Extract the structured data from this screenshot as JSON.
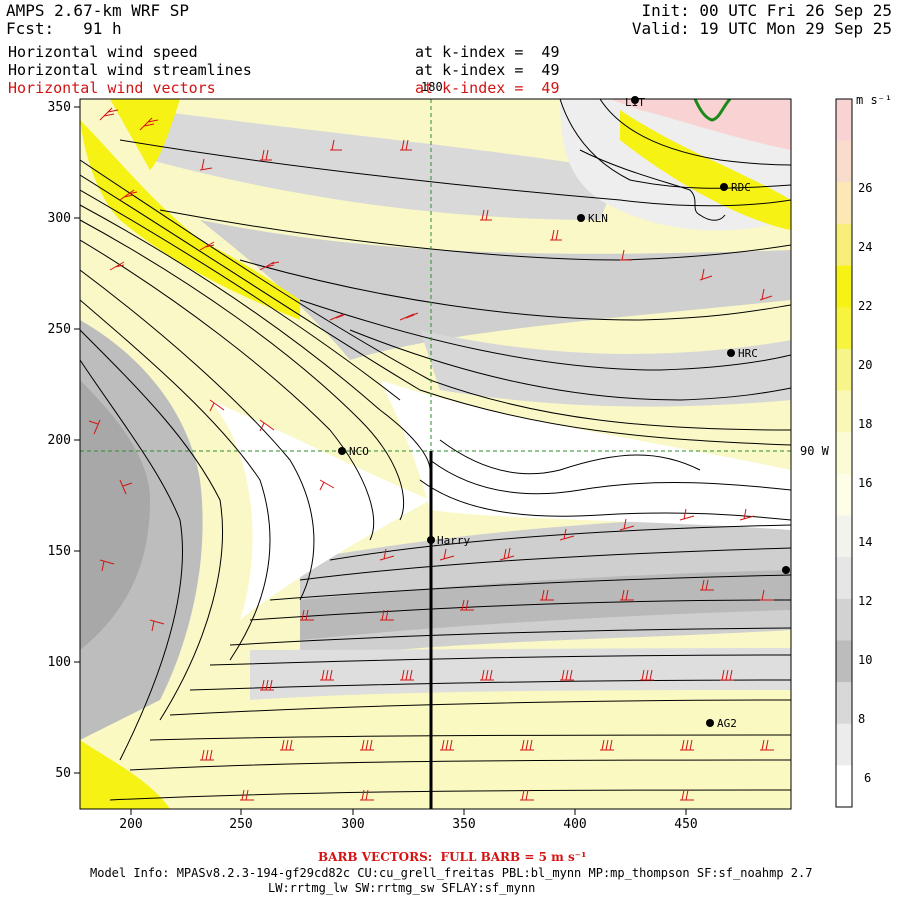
{
  "header": {
    "model_name": "AMPS 2.67-km WRF SP",
    "forecast": "Fcst:   91 h",
    "init": "Init: 00 UTC Fri 26 Sep 25",
    "valid": "Valid: 19 UTC Mon 29 Sep 25",
    "fields": [
      {
        "name": "Horizontal wind speed",
        "level": "at k-index =  49",
        "color": "#000000"
      },
      {
        "name": "Horizontal wind streamlines",
        "level": "at k-index =  49",
        "color": "#000000"
      },
      {
        "name": "Horizontal wind vectors",
        "level": "at k-index =  49",
        "color": "#d41414"
      }
    ]
  },
  "map": {
    "x_ticks": [
      "200",
      "250",
      "300",
      "350",
      "400",
      "450"
    ],
    "y_ticks": [
      "350",
      "300",
      "250",
      "200",
      "150",
      "100",
      "50"
    ],
    "meridian_label": "180",
    "parallel_label": "90 W",
    "stations": [
      {
        "name": "NCO"
      },
      {
        "name": "Harry"
      },
      {
        "name": "KLN"
      },
      {
        "name": "RDC"
      },
      {
        "name": "HRC"
      },
      {
        "name": "AG2"
      },
      {
        "name": "LIT"
      }
    ]
  },
  "colorbar": {
    "unit": "m s⁻¹",
    "labels": [
      "26",
      "24",
      "22",
      "20",
      "18",
      "16",
      "14",
      "12",
      "10",
      "8",
      "6"
    ],
    "colors": [
      "#f9d3d3",
      "#f9dccb",
      "#fbe8b4",
      "#f8ee7a",
      "#f6f214",
      "#f6f43c",
      "#f7f58a",
      "#f9f8b6",
      "#fbfbd6",
      "#fdfde8",
      "#f3f3ee",
      "#e6e6e6",
      "#d2d2d2",
      "#bcbcbc",
      "#d8d8d8",
      "#ececec",
      "#ffffff"
    ]
  },
  "footer": {
    "barb_note": "BARB VECTORS:  FULL BARB = 5 m s⁻¹",
    "model_info_1": "Model Info: MPASv8.2.3-194-gf29cd82c CU:cu_grell_freitas PBL:bl_mynn MP:mp_thompson SF:sf_noahmp 2.7",
    "model_info_2": "LW:rrtmg_lw SW:rrtmg_sw SFLAY:sf_mynn"
  },
  "colors": {
    "barb": "#d41414",
    "streamline": "#000000",
    "gridline": "#2e8b2e",
    "coast": "#1a8a1a"
  }
}
